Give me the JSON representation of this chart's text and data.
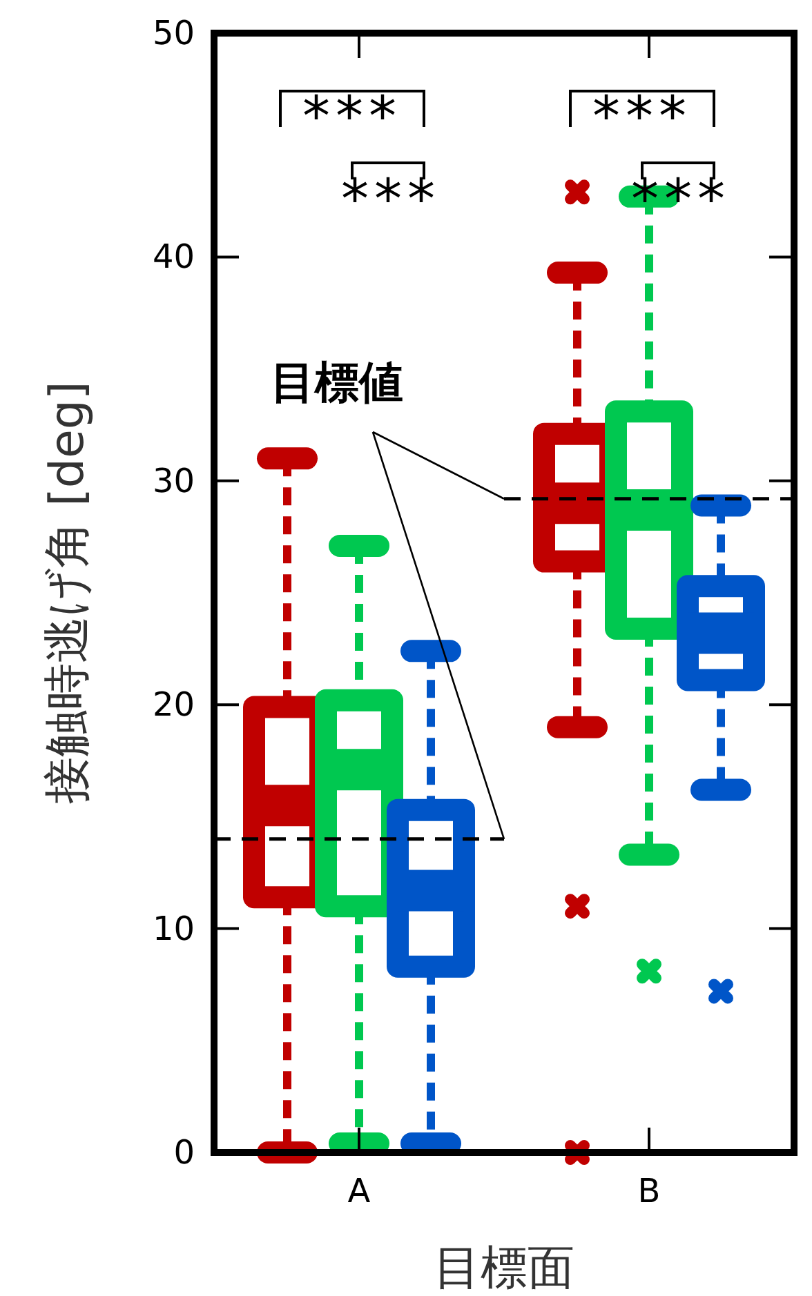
{
  "chart_data": {
    "type": "box",
    "xlabel": "目標面",
    "ylabel": "接触時逃げ角 [deg]",
    "categories": [
      "A",
      "B"
    ],
    "ylim": [
      0,
      50
    ],
    "yticks": [
      0,
      10,
      20,
      30,
      40,
      50
    ],
    "series": [
      {
        "color": "#c00000",
        "boxes": [
          {
            "low": 0,
            "q1": 11.4,
            "median": 15.5,
            "q3": 19.9,
            "high": 31.0
          },
          {
            "low": 19.0,
            "q1": 26.4,
            "median": 29.0,
            "q3": 32.1,
            "high": 39.3,
            "outliers": [
              42.9,
              11.0,
              0
            ]
          }
        ]
      },
      {
        "color": "#00c850",
        "boxes": [
          {
            "low": 0.4,
            "q1": 11.0,
            "median": 17.1,
            "q3": 20.2,
            "high": 27.1
          },
          {
            "low": 13.3,
            "q1": 23.4,
            "median": 28.7,
            "q3": 33.1,
            "high": 42.7,
            "outliers": [
              8.1
            ]
          }
        ]
      },
      {
        "color": "#0055c8",
        "boxes": [
          {
            "low": 0.4,
            "q1": 8.3,
            "median": 11.7,
            "q3": 15.3,
            "high": 22.4
          },
          {
            "low": 16.2,
            "q1": 21.1,
            "median": 23.2,
            "q3": 25.3,
            "high": 28.9,
            "outliers": [
              7.2
            ]
          }
        ]
      }
    ],
    "ref_lines": [
      {
        "axis": "y",
        "value": 14,
        "color": "#000000",
        "line_style": "dashed",
        "label": "目標値"
      },
      {
        "axis": "y",
        "value": 29.2,
        "color": "#000000",
        "line_style": "dashed"
      }
    ],
    "annotations": [
      "***",
      "***",
      "***",
      "***"
    ]
  }
}
